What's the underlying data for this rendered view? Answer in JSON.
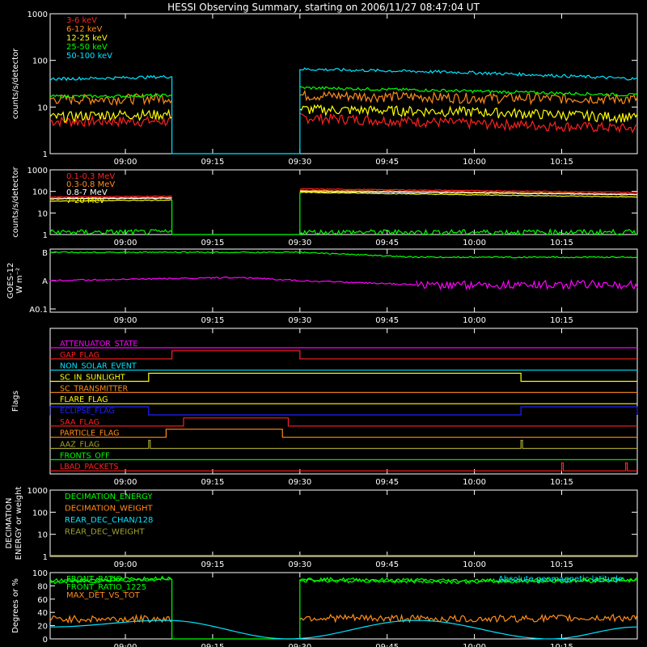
{
  "title": "HESSI Observing Summary, starting on 2006/11/27 08:47:04 UT",
  "time_ticks": [
    "09:00",
    "09:15",
    "09:30",
    "09:45",
    "10:00",
    "10:15"
  ],
  "colors": {
    "red": "#ff2020",
    "orange": "#ff8c1a",
    "yellow": "#ffff00",
    "green": "#00ff00",
    "cyan": "#00e5ff",
    "magenta": "#ff00ff",
    "blue": "#2020ff",
    "olive": "#a0a030",
    "white": "#ffffff"
  },
  "chart_data": [
    {
      "type": "line",
      "ylabel": "counts/s/detector",
      "yscale": "log",
      "ylim": [
        1,
        1000
      ],
      "y_ticks": [
        "1",
        "10",
        "100",
        "1000"
      ],
      "xlim": [
        "08:47:04",
        "10:28"
      ],
      "data_gap": [
        "09:08",
        "09:30"
      ],
      "series": [
        {
          "name": "3-6 keV",
          "color": "#ff2020",
          "values_before_gap": [
            5,
            5,
            5
          ],
          "values_after_gap": [
            6,
            4.5,
            3.5
          ]
        },
        {
          "name": "6-12 keV",
          "color": "#ff8c1a",
          "values_before_gap": [
            15,
            15,
            16
          ],
          "values_after_gap": [
            18,
            16,
            15
          ]
        },
        {
          "name": "12-25 keV",
          "color": "#ffff00",
          "values_before_gap": [
            6,
            7,
            7
          ],
          "values_after_gap": [
            9,
            8,
            6
          ]
        },
        {
          "name": "25-50 keV",
          "color": "#00ff00",
          "values_before_gap": [
            17,
            17,
            18
          ],
          "values_after_gap": [
            26,
            22,
            18
          ]
        },
        {
          "name": "50-100 keV",
          "color": "#00e5ff",
          "values_before_gap": [
            40,
            42,
            45
          ],
          "values_after_gap": [
            65,
            55,
            40
          ]
        }
      ]
    },
    {
      "type": "line",
      "ylabel": "counts/s/detector",
      "yscale": "log",
      "ylim": [
        1,
        1000
      ],
      "y_ticks": [
        "1",
        "10",
        "100",
        "1000"
      ],
      "data_gap": [
        "09:08",
        "09:30"
      ],
      "series": [
        {
          "name": "0.1-0.3 MeV",
          "color": "#ff2020",
          "values_before_gap": [
            55,
            58,
            60
          ],
          "values_after_gap": [
            130,
            110,
            90
          ]
        },
        {
          "name": "0.3-0.8 MeV",
          "color": "#ff8c1a",
          "values_before_gap": [
            48,
            50,
            52
          ],
          "values_after_gap": [
            110,
            95,
            75
          ]
        },
        {
          "name": "0.8-7 MeV",
          "color": "#ffffff",
          "values_before_gap": [
            45,
            47,
            48
          ],
          "values_after_gap": [
            100,
            85,
            70
          ]
        },
        {
          "name": "7-20 MeV",
          "color": "#ffff00",
          "values_before_gap": [
            35,
            38,
            40
          ],
          "values_after_gap": [
            90,
            70,
            55
          ]
        },
        {
          "name": "",
          "color": "#00ff00",
          "values_before_gap": [
            1.3,
            1.3,
            1.3
          ],
          "values_after_gap": [
            1.3,
            1.3,
            1.3
          ]
        }
      ]
    },
    {
      "type": "line",
      "ylabel": "GOES-12",
      "ylabel_units": "W m⁻²",
      "yscale": "log",
      "y_ticks": [
        "A0.1",
        "A",
        "B"
      ],
      "series": [
        {
          "name": "",
          "color": "#00ff00",
          "x": [
            "08:47",
            "09:30",
            "09:50",
            "10:00",
            "10:15",
            "10:28"
          ],
          "values": [
            "B",
            "B",
            "B-",
            "B-",
            "B-",
            "B-"
          ]
        },
        {
          "name": "",
          "color": "#ff00ff",
          "x": [
            "08:47",
            "09:20",
            "09:30",
            "09:50",
            "10:15",
            "10:28"
          ],
          "values": [
            "A",
            "A+",
            "A",
            "A-",
            "A-",
            "A-"
          ]
        }
      ]
    },
    {
      "type": "flags",
      "ylabel": "Flags",
      "flags": [
        {
          "name": "ATTENUATOR_STATE",
          "color": "#ff00ff",
          "on": []
        },
        {
          "name": "GAP_FLAG",
          "color": "#ff2020",
          "on": [
            [
              "09:08",
              "09:30"
            ]
          ]
        },
        {
          "name": "NON_SOLAR_EVENT",
          "color": "#00e5ff",
          "on": []
        },
        {
          "name": "SC_IN_SUNLIGHT",
          "color": "#ffff00",
          "on": [
            [
              "09:04",
              "10:08"
            ]
          ]
        },
        {
          "name": "SC_TRANSMITTER",
          "color": "#ff8c1a",
          "on": []
        },
        {
          "name": "FLARE_FLAG",
          "color": "#ffff00",
          "on": []
        },
        {
          "name": "ECLIPSE_FLAG",
          "color": "#2020ff",
          "on": [
            [
              "08:47",
              "09:04"
            ],
            [
              "10:08",
              "10:28"
            ]
          ]
        },
        {
          "name": "SAA_FLAG",
          "color": "#ff2020",
          "on": [
            [
              "09:10",
              "09:28"
            ]
          ]
        },
        {
          "name": "PARTICLE_FLAG",
          "color": "#ff8c1a",
          "on": [
            [
              "09:07",
              "09:27"
            ]
          ]
        },
        {
          "name": "AAZ_FLAG",
          "color": "#a0a030",
          "on": [
            [
              "09:04",
              "09:04"
            ],
            [
              "10:08",
              "10:08"
            ]
          ]
        },
        {
          "name": "FRONTS_OFF",
          "color": "#00ff00",
          "on": []
        },
        {
          "name": "LBAD_PACKETS",
          "color": "#ff2020",
          "on": [
            [
              "10:15",
              "10:15"
            ],
            [
              "10:26",
              "10:26"
            ]
          ]
        }
      ]
    },
    {
      "type": "line",
      "ylabel": "DECIMATION ENERGY or weight",
      "yscale": "log",
      "ylim": [
        1,
        1000
      ],
      "y_ticks": [
        "1",
        "10",
        "100",
        "1000"
      ],
      "series": [
        {
          "name": "DECIMATION_ENERGY",
          "color": "#00ff00",
          "values": []
        },
        {
          "name": "DECIMATION_WEIGHT",
          "color": "#ff8c1a",
          "values": []
        },
        {
          "name": "REAR_DEC_CHAN/128",
          "color": "#00e5ff",
          "values": []
        },
        {
          "name": "REAR_DEC_WEIGHT",
          "color": "#a0a030",
          "values": []
        }
      ]
    },
    {
      "type": "line",
      "ylabel": "Degrees or %",
      "ylim": [
        0,
        100
      ],
      "y_ticks": [
        "0",
        "20",
        "40",
        "60",
        "80",
        "100"
      ],
      "annotation": "Absolute geomagnetic latitude",
      "data_gap": [
        "09:08",
        "09:30"
      ],
      "series": [
        {
          "name": "FRONT_RATIO",
          "color": "#00ff00",
          "values_before_gap": [
            88,
            90,
            92
          ],
          "values_after_gap": [
            90,
            88,
            90
          ]
        },
        {
          "name": "FRONT_RATIO_1225",
          "color": "#00ff00",
          "values_before_gap": [
            85,
            88,
            90
          ],
          "values_after_gap": [
            88,
            86,
            88
          ]
        },
        {
          "name": "MAX_DET_VS_TOT",
          "color": "#ff8c1a",
          "values_before_gap": [
            30,
            30,
            30
          ],
          "values_after_gap": [
            32,
            30,
            32
          ]
        },
        {
          "name": "",
          "color": "#00e5ff",
          "x": [
            "08:47",
            "09:07",
            "09:28",
            "09:50",
            "10:13",
            "10:28"
          ],
          "values": [
            18,
            28,
            0,
            28,
            0,
            18
          ]
        }
      ]
    }
  ]
}
